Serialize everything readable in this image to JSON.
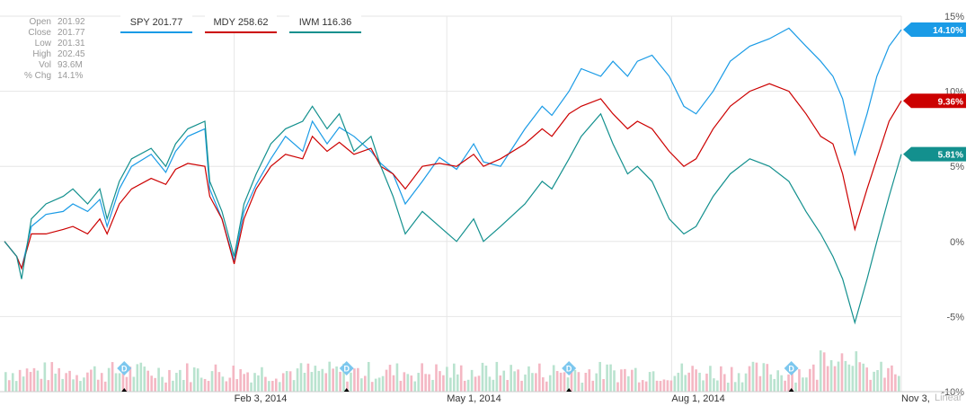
{
  "stats": {
    "rows": [
      {
        "label": "Open",
        "value": "201.92"
      },
      {
        "label": "Close",
        "value": "201.77"
      },
      {
        "label": "Low",
        "value": "201.31"
      },
      {
        "label": "High",
        "value": "202.45"
      },
      {
        "label": "Vol",
        "value": "93.6M"
      },
      {
        "label": "% Chg",
        "value": "14.1%"
      }
    ]
  },
  "legend": [
    {
      "label": "SPY 201.77",
      "color": "#1a9be6"
    },
    {
      "label": "MDY 258.62",
      "color": "#cc0000"
    },
    {
      "label": "IWM 116.36",
      "color": "#13908e"
    }
  ],
  "scale_label": "Linear",
  "events": [
    {
      "icon": "dividend-icon",
      "label": "D"
    },
    {
      "icon": "dividend-icon",
      "label": "D"
    },
    {
      "icon": "dividend-icon",
      "label": "D"
    },
    {
      "icon": "dividend-icon",
      "label": "D"
    }
  ],
  "chart_data": {
    "type": "line",
    "ylim": [
      -10,
      15
    ],
    "yticks": [
      "15%",
      "10%",
      "5%",
      "0%",
      "-5%",
      "-10%"
    ],
    "ytick_values": [
      15,
      10,
      5,
      0,
      -5,
      -10
    ],
    "x_range": [
      "2013-11-01",
      "2014-11-03"
    ],
    "xticks": [
      {
        "date": "2014-02-03",
        "label": "Feb 3, 2014"
      },
      {
        "date": "2014-05-01",
        "label": "May 1, 2014"
      },
      {
        "date": "2014-08-01",
        "label": "Aug 1, 2014"
      },
      {
        "date": "2014-11-03",
        "label": "Nov 3,"
      }
    ],
    "grid": true,
    "legend_position": "top-left",
    "series": [
      {
        "name": "SPY",
        "color": "#1a9be6",
        "end_label": "14.10%",
        "points": [
          [
            "2013-11-01",
            0
          ],
          [
            "2013-11-06",
            -1.0
          ],
          [
            "2013-11-08",
            -1.8
          ],
          [
            "2013-11-12",
            1.0
          ],
          [
            "2013-11-18",
            1.8
          ],
          [
            "2013-11-25",
            2.0
          ],
          [
            "2013-11-29",
            2.5
          ],
          [
            "2013-12-05",
            2.0
          ],
          [
            "2013-12-10",
            2.8
          ],
          [
            "2013-12-13",
            1.0
          ],
          [
            "2013-12-18",
            3.5
          ],
          [
            "2013-12-23",
            5.0
          ],
          [
            "2013-12-31",
            5.8
          ],
          [
            "2014-01-06",
            4.6
          ],
          [
            "2014-01-10",
            6.0
          ],
          [
            "2014-01-15",
            7.0
          ],
          [
            "2014-01-22",
            7.5
          ],
          [
            "2014-01-24",
            3.5
          ],
          [
            "2014-01-29",
            1.5
          ],
          [
            "2014-02-03",
            -1.3
          ],
          [
            "2014-02-07",
            2.0
          ],
          [
            "2014-02-12",
            3.8
          ],
          [
            "2014-02-18",
            5.5
          ],
          [
            "2014-02-24",
            7.0
          ],
          [
            "2014-03-03",
            6.0
          ],
          [
            "2014-03-07",
            8.0
          ],
          [
            "2014-03-13",
            6.5
          ],
          [
            "2014-03-18",
            7.6
          ],
          [
            "2014-03-24",
            7.0
          ],
          [
            "2014-03-31",
            6.0
          ],
          [
            "2014-04-04",
            5.2
          ],
          [
            "2014-04-09",
            4.5
          ],
          [
            "2014-04-14",
            2.5
          ],
          [
            "2014-04-21",
            4.0
          ],
          [
            "2014-04-28",
            5.6
          ],
          [
            "2014-05-05",
            4.8
          ],
          [
            "2014-05-12",
            6.5
          ],
          [
            "2014-05-16",
            5.3
          ],
          [
            "2014-05-23",
            5.0
          ],
          [
            "2014-06-02",
            7.5
          ],
          [
            "2014-06-09",
            9.0
          ],
          [
            "2014-06-13",
            8.4
          ],
          [
            "2014-06-20",
            10.0
          ],
          [
            "2014-06-25",
            11.5
          ],
          [
            "2014-07-03",
            11.0
          ],
          [
            "2014-07-08",
            12.0
          ],
          [
            "2014-07-14",
            11.0
          ],
          [
            "2014-07-18",
            12.0
          ],
          [
            "2014-07-24",
            12.4
          ],
          [
            "2014-07-31",
            11.0
          ],
          [
            "2014-08-06",
            9.0
          ],
          [
            "2014-08-11",
            8.5
          ],
          [
            "2014-08-18",
            10.0
          ],
          [
            "2014-08-25",
            12.0
          ],
          [
            "2014-09-02",
            13.0
          ],
          [
            "2014-09-10",
            13.5
          ],
          [
            "2014-09-18",
            14.2
          ],
          [
            "2014-09-25",
            13.0
          ],
          [
            "2014-10-01",
            12.0
          ],
          [
            "2014-10-06",
            11.0
          ],
          [
            "2014-10-10",
            9.5
          ],
          [
            "2014-10-15",
            5.8
          ],
          [
            "2014-10-20",
            8.5
          ],
          [
            "2014-10-24",
            11.0
          ],
          [
            "2014-10-29",
            13.0
          ],
          [
            "2014-11-03",
            14.1
          ]
        ]
      },
      {
        "name": "MDY",
        "color": "#cc0000",
        "end_label": "9.36%",
        "points": [
          [
            "2013-11-01",
            0
          ],
          [
            "2013-11-06",
            -1.0
          ],
          [
            "2013-11-08",
            -1.8
          ],
          [
            "2013-11-12",
            0.5
          ],
          [
            "2013-11-18",
            0.5
          ],
          [
            "2013-11-25",
            0.8
          ],
          [
            "2013-11-29",
            1.0
          ],
          [
            "2013-12-05",
            0.5
          ],
          [
            "2013-12-10",
            1.5
          ],
          [
            "2013-12-13",
            0.5
          ],
          [
            "2013-12-18",
            2.5
          ],
          [
            "2013-12-23",
            3.5
          ],
          [
            "2013-12-31",
            4.2
          ],
          [
            "2014-01-06",
            3.8
          ],
          [
            "2014-01-10",
            4.8
          ],
          [
            "2014-01-15",
            5.2
          ],
          [
            "2014-01-22",
            5.0
          ],
          [
            "2014-01-24",
            3.0
          ],
          [
            "2014-01-29",
            1.5
          ],
          [
            "2014-02-03",
            -1.5
          ],
          [
            "2014-02-07",
            1.5
          ],
          [
            "2014-02-12",
            3.5
          ],
          [
            "2014-02-18",
            5.0
          ],
          [
            "2014-02-24",
            5.8
          ],
          [
            "2014-03-03",
            5.5
          ],
          [
            "2014-03-07",
            7.0
          ],
          [
            "2014-03-13",
            6.0
          ],
          [
            "2014-03-18",
            6.6
          ],
          [
            "2014-03-24",
            5.8
          ],
          [
            "2014-03-31",
            6.2
          ],
          [
            "2014-04-04",
            5.0
          ],
          [
            "2014-04-09",
            4.5
          ],
          [
            "2014-04-14",
            3.5
          ],
          [
            "2014-04-21",
            5.0
          ],
          [
            "2014-04-28",
            5.2
          ],
          [
            "2014-05-05",
            5.0
          ],
          [
            "2014-05-12",
            5.8
          ],
          [
            "2014-05-16",
            5.0
          ],
          [
            "2014-05-23",
            5.5
          ],
          [
            "2014-06-02",
            6.5
          ],
          [
            "2014-06-09",
            7.5
          ],
          [
            "2014-06-13",
            7.0
          ],
          [
            "2014-06-20",
            8.5
          ],
          [
            "2014-06-25",
            9.0
          ],
          [
            "2014-07-03",
            9.5
          ],
          [
            "2014-07-08",
            8.5
          ],
          [
            "2014-07-14",
            7.5
          ],
          [
            "2014-07-18",
            8.0
          ],
          [
            "2014-07-24",
            7.5
          ],
          [
            "2014-07-31",
            6.0
          ],
          [
            "2014-08-06",
            5.0
          ],
          [
            "2014-08-11",
            5.5
          ],
          [
            "2014-08-18",
            7.5
          ],
          [
            "2014-08-25",
            9.0
          ],
          [
            "2014-09-02",
            10.0
          ],
          [
            "2014-09-10",
            10.5
          ],
          [
            "2014-09-18",
            10.0
          ],
          [
            "2014-09-25",
            8.5
          ],
          [
            "2014-10-01",
            7.0
          ],
          [
            "2014-10-06",
            6.5
          ],
          [
            "2014-10-10",
            4.5
          ],
          [
            "2014-10-15",
            0.8
          ],
          [
            "2014-10-20",
            3.5
          ],
          [
            "2014-10-24",
            5.5
          ],
          [
            "2014-10-29",
            8.0
          ],
          [
            "2014-11-03",
            9.36
          ]
        ]
      },
      {
        "name": "IWM",
        "color": "#13908e",
        "end_label": "5.81%",
        "points": [
          [
            "2013-11-01",
            0
          ],
          [
            "2013-11-06",
            -1.0
          ],
          [
            "2013-11-08",
            -2.5
          ],
          [
            "2013-11-12",
            1.5
          ],
          [
            "2013-11-18",
            2.5
          ],
          [
            "2013-11-25",
            3.0
          ],
          [
            "2013-11-29",
            3.5
          ],
          [
            "2013-12-05",
            2.5
          ],
          [
            "2013-12-10",
            3.5
          ],
          [
            "2013-12-13",
            1.5
          ],
          [
            "2013-12-18",
            4.0
          ],
          [
            "2013-12-23",
            5.5
          ],
          [
            "2013-12-31",
            6.2
          ],
          [
            "2014-01-06",
            5.0
          ],
          [
            "2014-01-10",
            6.5
          ],
          [
            "2014-01-15",
            7.5
          ],
          [
            "2014-01-22",
            8.0
          ],
          [
            "2014-01-24",
            4.0
          ],
          [
            "2014-01-29",
            2.0
          ],
          [
            "2014-02-03",
            -1.0
          ],
          [
            "2014-02-07",
            2.5
          ],
          [
            "2014-02-12",
            4.5
          ],
          [
            "2014-02-18",
            6.5
          ],
          [
            "2014-02-24",
            7.5
          ],
          [
            "2014-03-03",
            8.0
          ],
          [
            "2014-03-07",
            9.0
          ],
          [
            "2014-03-13",
            7.5
          ],
          [
            "2014-03-18",
            8.5
          ],
          [
            "2014-03-24",
            6.0
          ],
          [
            "2014-03-31",
            7.0
          ],
          [
            "2014-04-04",
            5.0
          ],
          [
            "2014-04-09",
            3.0
          ],
          [
            "2014-04-14",
            0.5
          ],
          [
            "2014-04-21",
            2.0
          ],
          [
            "2014-04-28",
            1.0
          ],
          [
            "2014-05-05",
            0
          ],
          [
            "2014-05-12",
            1.5
          ],
          [
            "2014-05-16",
            0
          ],
          [
            "2014-05-23",
            1.0
          ],
          [
            "2014-06-02",
            2.5
          ],
          [
            "2014-06-09",
            4.0
          ],
          [
            "2014-06-13",
            3.5
          ],
          [
            "2014-06-20",
            5.5
          ],
          [
            "2014-06-25",
            7.0
          ],
          [
            "2014-07-03",
            8.5
          ],
          [
            "2014-07-08",
            6.5
          ],
          [
            "2014-07-14",
            4.5
          ],
          [
            "2014-07-18",
            5.0
          ],
          [
            "2014-07-24",
            4.0
          ],
          [
            "2014-07-31",
            1.5
          ],
          [
            "2014-08-06",
            0.5
          ],
          [
            "2014-08-11",
            1.0
          ],
          [
            "2014-08-18",
            3.0
          ],
          [
            "2014-08-25",
            4.5
          ],
          [
            "2014-09-02",
            5.5
          ],
          [
            "2014-09-10",
            5.0
          ],
          [
            "2014-09-18",
            4.0
          ],
          [
            "2014-09-25",
            2.0
          ],
          [
            "2014-10-01",
            0.5
          ],
          [
            "2014-10-06",
            -1.0
          ],
          [
            "2014-10-10",
            -2.5
          ],
          [
            "2014-10-15",
            -5.4
          ],
          [
            "2014-10-20",
            -2.5
          ],
          [
            "2014-10-24",
            0
          ],
          [
            "2014-10-29",
            3.0
          ],
          [
            "2014-11-03",
            5.81
          ]
        ]
      }
    ]
  }
}
